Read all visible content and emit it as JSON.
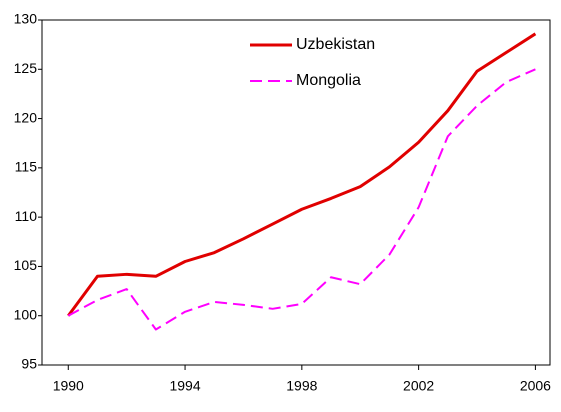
{
  "chart_data": {
    "type": "line",
    "x": [
      1990,
      1991,
      1992,
      1993,
      1994,
      1995,
      1996,
      1997,
      1998,
      1999,
      2000,
      2001,
      2002,
      2003,
      2004,
      2005,
      2006
    ],
    "series": [
      {
        "name": "Uzbekistan",
        "color": "#e00000",
        "dash": false,
        "values": [
          100,
          104,
          104.2,
          104,
          105.5,
          106.4,
          107.8,
          109.3,
          110.8,
          111.9,
          113.1,
          115.1,
          117.6,
          120.8,
          124.8,
          126.7,
          128.6
        ]
      },
      {
        "name": "Mongolia",
        "color": "#ff00ff",
        "dash": true,
        "values": [
          100,
          101.6,
          102.7,
          98.6,
          100.4,
          101.4,
          101.1,
          100.7,
          101.2,
          103.9,
          103.2,
          106.2,
          111,
          118.2,
          121.3,
          123.7,
          125
        ]
      }
    ],
    "xlim": [
      1989.1,
      2006.5
    ],
    "xticks": [
      1990,
      1994,
      1998,
      2002,
      2006
    ],
    "ylim": [
      95,
      130
    ],
    "yticks": [
      95,
      100,
      105,
      110,
      115,
      120,
      125,
      130
    ],
    "grid": false,
    "legend": "top-center"
  }
}
